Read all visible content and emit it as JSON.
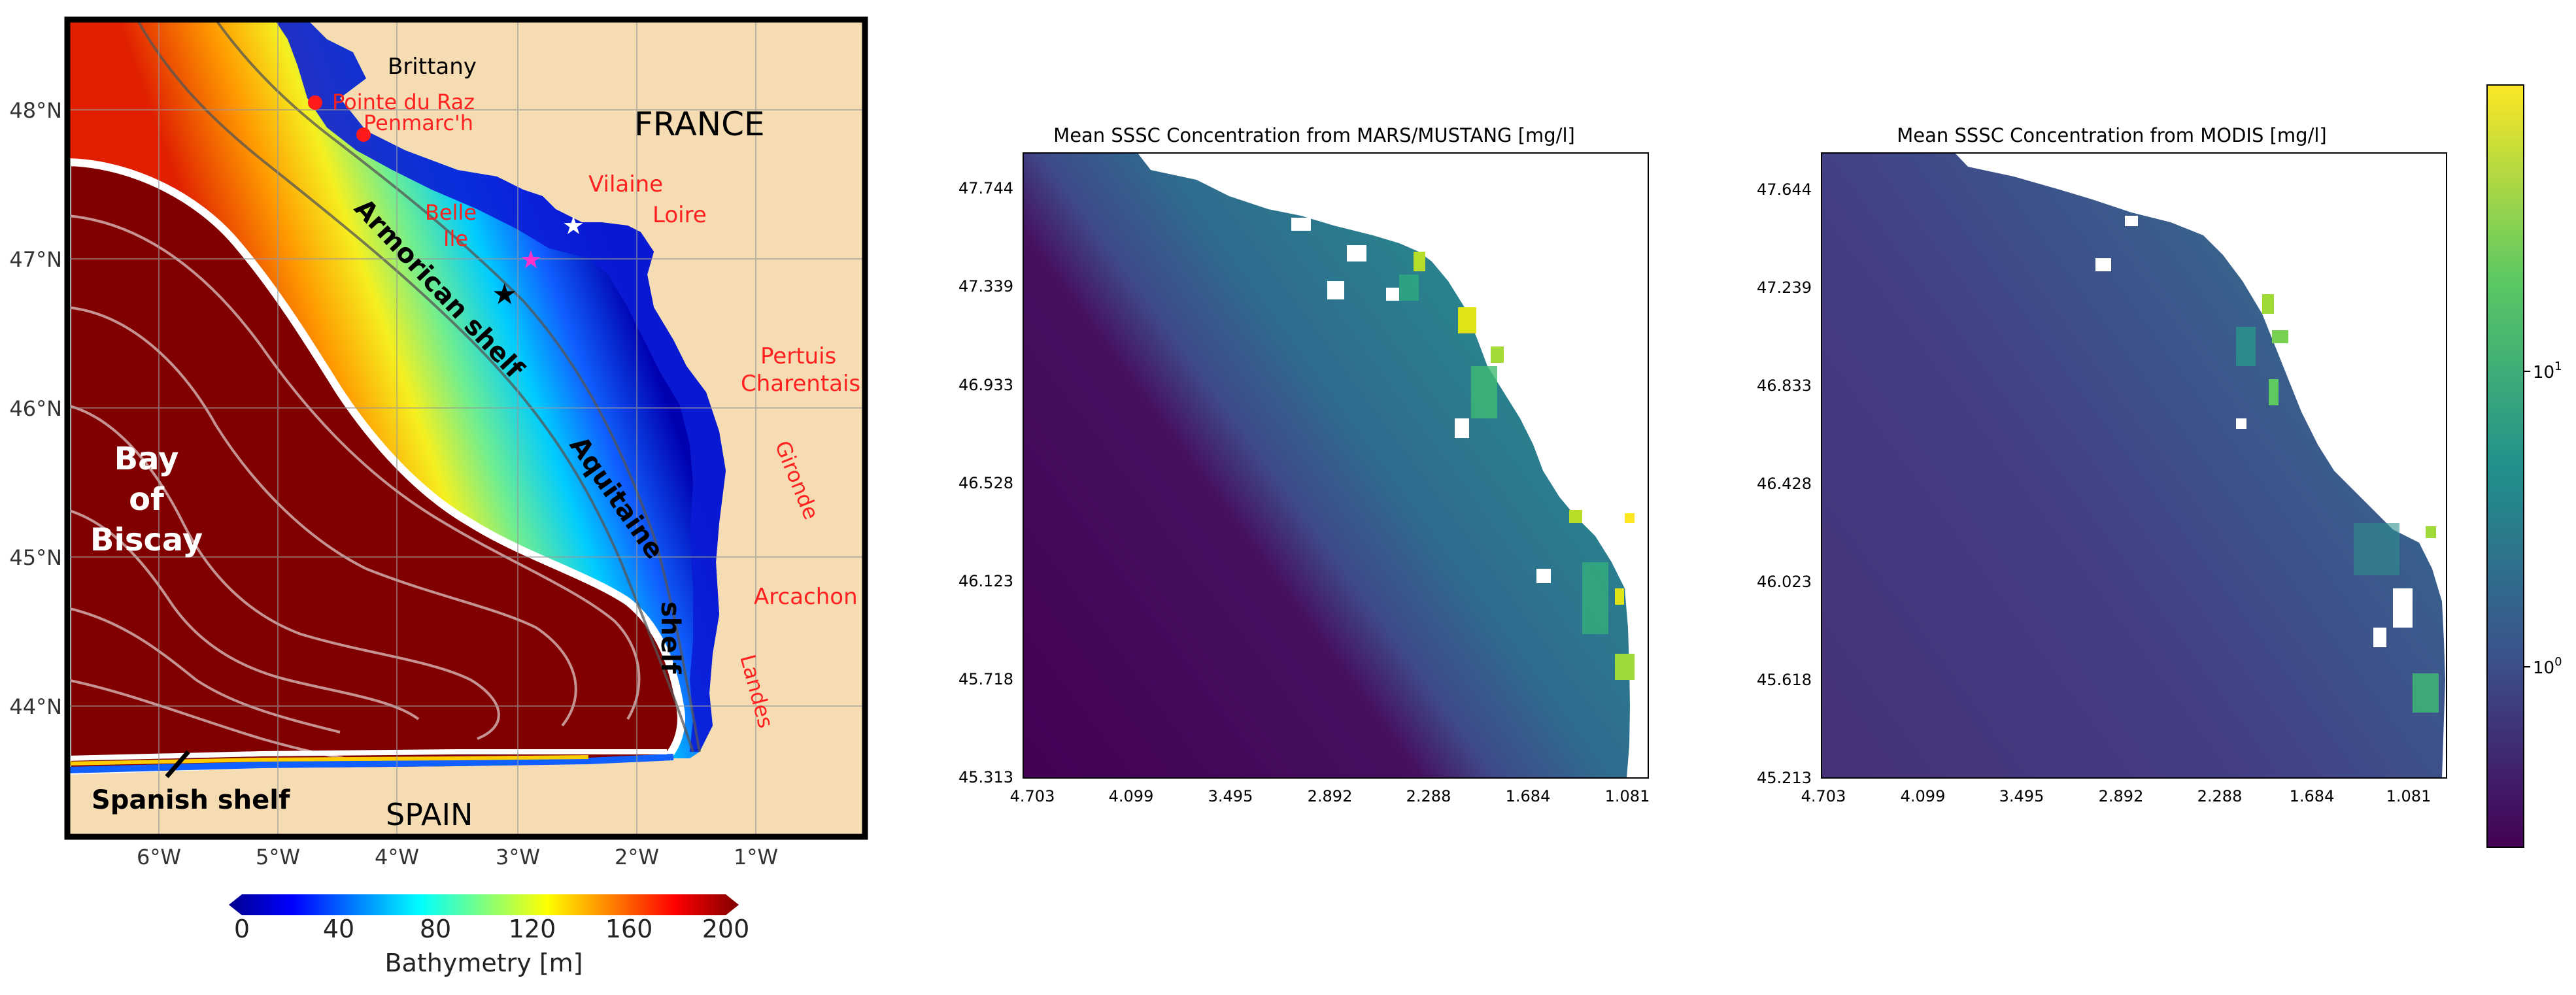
{
  "map": {
    "lat_ticks": [
      "48°N",
      "47°N",
      "46°N",
      "45°N",
      "44°N"
    ],
    "lon_ticks": [
      "6°W",
      "5°W",
      "4°W",
      "3°W",
      "2°W",
      "1°W"
    ],
    "labels": {
      "brittany": "Brittany",
      "france": "FRANCE",
      "spain": "SPAIN",
      "pointe_du_raz": "Pointe du Raz",
      "penmarch": "Penmarc'h",
      "vilaine": "Vilaine",
      "loire": "Loire",
      "belle_ile_1": "Belle",
      "belle_ile_2": "Ile",
      "pertuis_1": "Pertuis",
      "pertuis_2": "Charentais",
      "gironde": "Gironde",
      "arcachon": "Arcachon",
      "landes": "Landes",
      "bay_1": "Bay",
      "bay_2": "of",
      "bay_3": "Biscay",
      "armorican_shelf": "Armorican shelf",
      "aquitaine_1": "Aquitaine",
      "aquitaine_2": "shelf",
      "spanish_shelf": "Spanish shelf"
    },
    "colors": {
      "land": "#f5dcb3",
      "deep": "#800000",
      "place_labels": "#ff2020"
    }
  },
  "bathymetry_colorbar": {
    "ticks": [
      "0",
      "40",
      "80",
      "120",
      "160",
      "200"
    ],
    "label": "Bathymetry [m]",
    "range": [
      0,
      200
    ]
  },
  "chart_data": [
    {
      "type": "heatmap",
      "title": "Mean SSSC Concentration from MARS/MUSTANG [mg/l]",
      "x_tick_labels": [
        "4.703",
        "4.099",
        "3.495",
        "2.892",
        "2.288",
        "1.684",
        "1.081"
      ],
      "y_tick_labels": [
        "47.744",
        "47.339",
        "46.933",
        "46.528",
        "46.123",
        "45.718",
        "45.313"
      ]
    },
    {
      "type": "heatmap",
      "title": "Mean SSSC Concentration from MODIS [mg/l]",
      "x_tick_labels": [
        "4.703",
        "4.099",
        "3.495",
        "2.892",
        "2.288",
        "1.684",
        "1.081"
      ],
      "y_tick_labels": [
        "47.644",
        "47.239",
        "46.833",
        "46.428",
        "46.023",
        "45.618",
        "45.213"
      ]
    }
  ],
  "colorbar": {
    "scale": "log",
    "ticks": [
      {
        "base": "10",
        "exp": "1",
        "value": 10
      },
      {
        "base": "10",
        "exp": "0",
        "value": 1
      }
    ],
    "colormap": "viridis"
  }
}
